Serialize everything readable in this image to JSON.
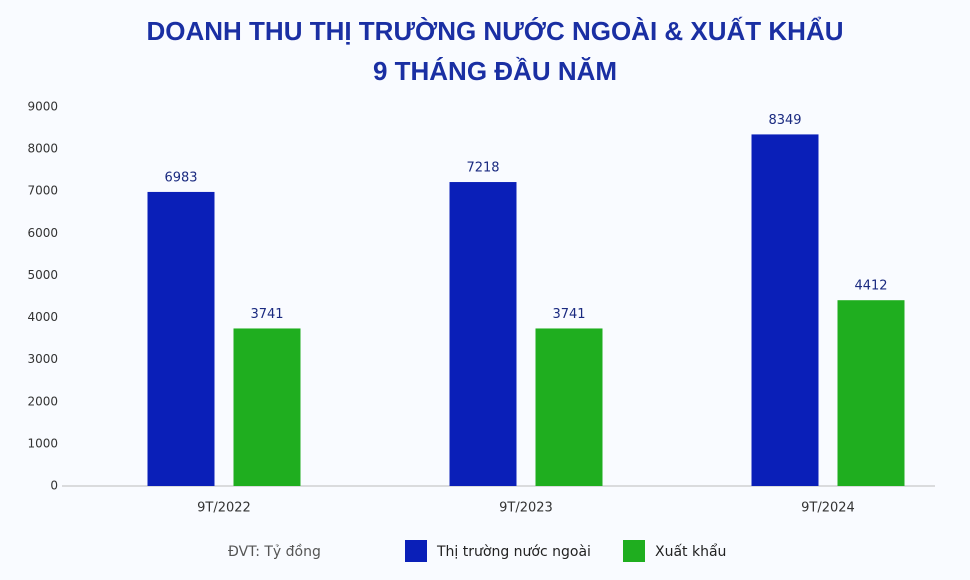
{
  "chart_data": {
    "type": "bar",
    "title": [
      "DOANH THU THỊ TRƯỜNG NƯỚC NGOÀI & XUẤT KHẨU",
      "9 THÁNG ĐẦU NĂM"
    ],
    "note": "ĐVT: Tỷ đồng",
    "categories": [
      "9T/2022",
      "9T/2023",
      "9T/2024"
    ],
    "series": [
      {
        "name": "Thị trường nước ngoài",
        "color": "#0a1fb8",
        "values": [
          6983,
          7218,
          8349
        ]
      },
      {
        "name": "Xuất khẩu",
        "color": "#1fae1f",
        "values": [
          3741,
          3741,
          4412
        ]
      }
    ],
    "ylim": [
      0,
      9000
    ],
    "yticks": [
      0,
      1000,
      2000,
      3000,
      4000,
      5000,
      6000,
      7000,
      8000,
      9000
    ],
    "grid": false,
    "legend": "bottom"
  }
}
